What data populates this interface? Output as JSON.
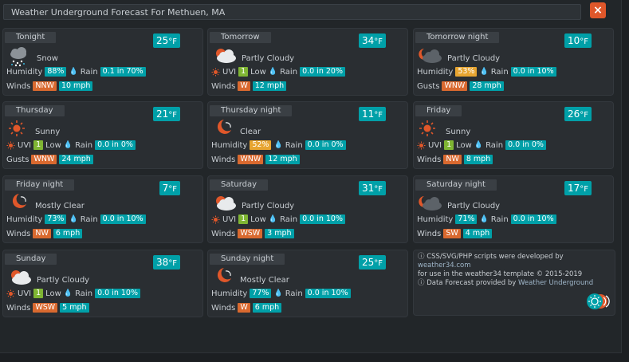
{
  "window": {
    "title": "Weather Underground Forecast For Methuen, MA",
    "close_label": "×"
  },
  "forecast": [
    {
      "period": "Tonight",
      "temp": "25",
      "unit": "°F",
      "icon": "snow-icon",
      "condition": "Snow",
      "line1": {
        "type": "humidity",
        "label": "Humidity",
        "value": "88%",
        "rain_label": "Rain",
        "rain": "0.1 in 70%"
      },
      "line2": {
        "label": "Winds",
        "dir": "NNW",
        "speed": "10 mph"
      }
    },
    {
      "period": "Tomorrow",
      "temp": "34",
      "unit": "°F",
      "icon": "partly-cloudy-icon",
      "condition": "Partly Cloudy",
      "line1": {
        "type": "uvi",
        "label": "UVI",
        "value": "1",
        "level": "Low",
        "rain_label": "Rain",
        "rain": "0.0 in 20%"
      },
      "line2": {
        "label": "Winds",
        "dir": "W",
        "speed": "12 mph"
      }
    },
    {
      "period": "Tomorrow night",
      "temp": "10",
      "unit": "°F",
      "icon": "partly-cloudy-night-icon",
      "condition": "Partly Cloudy",
      "line1": {
        "type": "humidity",
        "label": "Humidity",
        "value": "53%",
        "rain_label": "Rain",
        "rain": "0.0 in 10%"
      },
      "line2": {
        "label": "Gusts",
        "dir": "WNW",
        "speed": "28 mph"
      }
    },
    {
      "period": "Thursday",
      "temp": "21",
      "unit": "°F",
      "icon": "sun-icon",
      "condition": "Sunny",
      "line1": {
        "type": "uvi",
        "label": "UVI",
        "value": "1",
        "level": "Low",
        "rain_label": "Rain",
        "rain": "0.0 in 0%"
      },
      "line2": {
        "label": "Gusts",
        "dir": "WNW",
        "speed": "24 mph"
      }
    },
    {
      "period": "Thursday night",
      "temp": "11",
      "unit": "°F",
      "icon": "moon-clear-icon",
      "condition": "Clear",
      "line1": {
        "type": "humidity",
        "label": "Humidity",
        "value": "52%",
        "rain_label": "Rain",
        "rain": "0.0 in 0%"
      },
      "line2": {
        "label": "Winds",
        "dir": "WNW",
        "speed": "12 mph"
      }
    },
    {
      "period": "Friday",
      "temp": "26",
      "unit": "°F",
      "icon": "sun-icon",
      "condition": "Sunny",
      "line1": {
        "type": "uvi",
        "label": "UVI",
        "value": "1",
        "level": "Low",
        "rain_label": "Rain",
        "rain": "0.0 in 0%"
      },
      "line2": {
        "label": "Winds",
        "dir": "NW",
        "speed": "8 mph"
      }
    },
    {
      "period": "Friday night",
      "temp": "7",
      "unit": "°F",
      "icon": "moon-clear-icon",
      "condition": "Mostly Clear",
      "line1": {
        "type": "humidity",
        "label": "Humidity",
        "value": "73%",
        "rain_label": "Rain",
        "rain": "0.0 in 10%"
      },
      "line2": {
        "label": "Winds",
        "dir": "NW",
        "speed": "6 mph"
      }
    },
    {
      "period": "Saturday",
      "temp": "31",
      "unit": "°F",
      "icon": "partly-cloudy-icon",
      "condition": "Partly Cloudy",
      "line1": {
        "type": "uvi",
        "label": "UVI",
        "value": "1",
        "level": "Low",
        "rain_label": "Rain",
        "rain": "0.0 in 10%"
      },
      "line2": {
        "label": "Winds",
        "dir": "WSW",
        "speed": "3 mph"
      }
    },
    {
      "period": "Saturday night",
      "temp": "17",
      "unit": "°F",
      "icon": "partly-cloudy-night-icon",
      "condition": "Partly Cloudy",
      "line1": {
        "type": "humidity",
        "label": "Humidity",
        "value": "71%",
        "rain_label": "Rain",
        "rain": "0.0 in 10%"
      },
      "line2": {
        "label": "Winds",
        "dir": "SW",
        "speed": "4 mph"
      }
    },
    {
      "period": "Sunday",
      "temp": "38",
      "unit": "°F",
      "icon": "partly-cloudy-icon",
      "condition": "Partly Cloudy",
      "line1": {
        "type": "uvi",
        "label": "UVI",
        "value": "1",
        "level": "Low",
        "rain_label": "Rain",
        "rain": "0.0 in 10%"
      },
      "line2": {
        "label": "Winds",
        "dir": "WSW",
        "speed": "5 mph"
      }
    },
    {
      "period": "Sunday night",
      "temp": "25",
      "unit": "°F",
      "icon": "moon-clear-icon",
      "condition": "Mostly Clear",
      "line1": {
        "type": "humidity",
        "label": "Humidity",
        "value": "77%",
        "rain_label": "Rain",
        "rain": "0.0 in 10%"
      },
      "line2": {
        "label": "Winds",
        "dir": "W",
        "speed": "6 mph"
      }
    }
  ],
  "credits": {
    "line1_pre": "CSS/SVG/PHP scripts were developed by ",
    "line1_link": "weather34.com",
    "line2": "for use in the weather34 template © 2015-2019",
    "line3_pre": "Data Forecast provided by ",
    "line3_link": "Weather Underground"
  },
  "colors": {
    "teal": "#00a0a8",
    "orange": "#d9692f",
    "yellow": "#e7a531",
    "green": "#7fb533",
    "close": "#e0572a"
  }
}
